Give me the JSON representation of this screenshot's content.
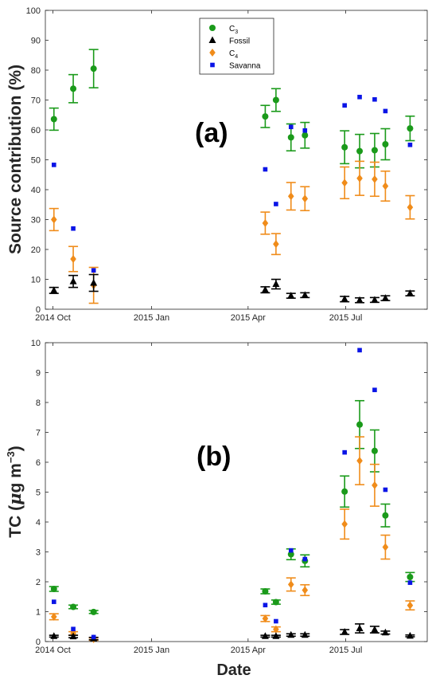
{
  "chart_data": [
    {
      "type": "scatter",
      "panel_label": "(a)",
      "ylabel": "Source contribution (%)",
      "ylim": [
        0,
        100
      ],
      "yticks": [
        0,
        10,
        20,
        30,
        40,
        50,
        60,
        70,
        80,
        90,
        100
      ],
      "xlim": [
        "2014-09-24",
        "2015-09-15"
      ],
      "xticks": [
        {
          "date": "2014-10-01",
          "label": "2014 Oct"
        },
        {
          "date": "2015-01-01",
          "label": "2015 Jan"
        },
        {
          "date": "2015-04-01",
          "label": "2015 Apr"
        },
        {
          "date": "2015-07-01",
          "label": "2015 Jul"
        }
      ],
      "legend": {
        "placement": "top-center",
        "entries": [
          {
            "series": "C3",
            "text": "C",
            "sub": "3"
          },
          {
            "series": "Fossil",
            "text": "Fossil",
            "sub": ""
          },
          {
            "series": "C4",
            "text": "C",
            "sub": "4"
          },
          {
            "series": "Savanna",
            "text": "Savanna",
            "sub": ""
          }
        ]
      },
      "x": [
        "2014-10-02",
        "2014-10-20",
        "2014-11-08",
        "2015-04-17",
        "2015-04-27",
        "2015-05-11",
        "2015-05-24",
        "2015-06-30",
        "2015-07-14",
        "2015-07-28",
        "2015-08-07",
        "2015-08-30"
      ],
      "series": [
        {
          "name": "C3",
          "color": "#1a9a1a",
          "marker": "circle",
          "values": [
            63.6,
            73.8,
            80.5,
            64.5,
            70.0,
            57.5,
            58.2,
            54.2,
            52.9,
            53.2,
            55.2,
            60.5
          ],
          "err": [
            3.7,
            4.7,
            6.4,
            3.7,
            3.8,
            4.5,
            4.3,
            5.5,
            5.6,
            5.6,
            5.2,
            4.1
          ]
        },
        {
          "name": "Fossil",
          "color": "#000000",
          "marker": "triangle",
          "values": [
            6.3,
            9.3,
            8.8,
            6.5,
            8.4,
            4.5,
            4.7,
            3.4,
            3.0,
            3.1,
            3.7,
            5.3
          ],
          "err": [
            1.0,
            2.0,
            2.8,
            1.0,
            1.6,
            0.8,
            0.8,
            0.9,
            0.8,
            0.8,
            0.8,
            0.8
          ]
        },
        {
          "name": "C4",
          "color": "#f08c1a",
          "marker": "diamond",
          "values": [
            30.0,
            16.8,
            8.0,
            28.8,
            21.8,
            37.8,
            37.0,
            42.3,
            43.8,
            43.5,
            41.2,
            34.1
          ],
          "err": [
            3.7,
            4.2,
            6.0,
            3.7,
            3.5,
            4.6,
            4.0,
            5.3,
            5.7,
            5.7,
            5.0,
            3.9
          ]
        },
        {
          "name": "Savanna",
          "color": "#0a14e6",
          "marker": "square",
          "values": [
            48.3,
            27.0,
            13.0,
            46.8,
            35.2,
            61.0,
            59.8,
            68.2,
            71.0,
            70.2,
            66.3,
            55.0
          ]
        }
      ]
    },
    {
      "type": "scatter",
      "panel_label": "(b)",
      "ylabel": "TC (",
      "ylabel_mu": "μ",
      "ylabel_rest": "g m",
      "ylabel_sup": "−3",
      "ylabel_close": ")",
      "xlabel": "Date",
      "ylim": [
        0,
        10
      ],
      "yticks": [
        0,
        1,
        2,
        3,
        4,
        5,
        6,
        7,
        8,
        9,
        10
      ],
      "xlim": [
        "2014-09-24",
        "2015-09-15"
      ],
      "xticks": [
        {
          "date": "2014-10-01",
          "label": "2014 Oct"
        },
        {
          "date": "2015-01-01",
          "label": "2015 Jan"
        },
        {
          "date": "2015-04-01",
          "label": "2015 Apr"
        },
        {
          "date": "2015-07-01",
          "label": "2015 Jul"
        }
      ],
      "x": [
        "2014-10-02",
        "2014-10-20",
        "2014-11-08",
        "2015-04-17",
        "2015-04-27",
        "2015-05-11",
        "2015-05-24",
        "2015-06-30",
        "2015-07-14",
        "2015-07-28",
        "2015-08-07",
        "2015-08-30"
      ],
      "series": [
        {
          "name": "C3",
          "color": "#1a9a1a",
          "marker": "circle",
          "values": [
            1.76,
            1.16,
            0.99,
            1.68,
            1.32,
            2.92,
            2.7,
            5.02,
            7.26,
            6.38,
            4.22,
            2.16
          ],
          "err": [
            0.08,
            0.06,
            0.05,
            0.08,
            0.07,
            0.18,
            0.2,
            0.52,
            0.8,
            0.7,
            0.38,
            0.15
          ]
        },
        {
          "name": "Fossil",
          "color": "#000000",
          "marker": "triangle",
          "values": [
            0.18,
            0.17,
            0.1,
            0.18,
            0.18,
            0.22,
            0.22,
            0.32,
            0.44,
            0.4,
            0.3,
            0.19
          ],
          "err": [
            0.03,
            0.04,
            0.04,
            0.03,
            0.03,
            0.04,
            0.04,
            0.08,
            0.15,
            0.11,
            0.05,
            0.03
          ]
        },
        {
          "name": "C4",
          "color": "#f08c1a",
          "marker": "diamond",
          "values": [
            0.83,
            0.27,
            0.08,
            0.77,
            0.41,
            1.91,
            1.72,
            3.93,
            6.05,
            5.23,
            3.16,
            1.21
          ],
          "err": [
            0.1,
            0.06,
            0.04,
            0.1,
            0.08,
            0.22,
            0.18,
            0.5,
            0.8,
            0.7,
            0.4,
            0.15
          ]
        },
        {
          "name": "Savanna",
          "color": "#0a14e6",
          "marker": "square",
          "values": [
            1.33,
            0.42,
            0.15,
            1.22,
            0.68,
            3.05,
            2.76,
            6.33,
            9.75,
            8.42,
            5.08,
            1.97
          ]
        }
      ]
    }
  ]
}
